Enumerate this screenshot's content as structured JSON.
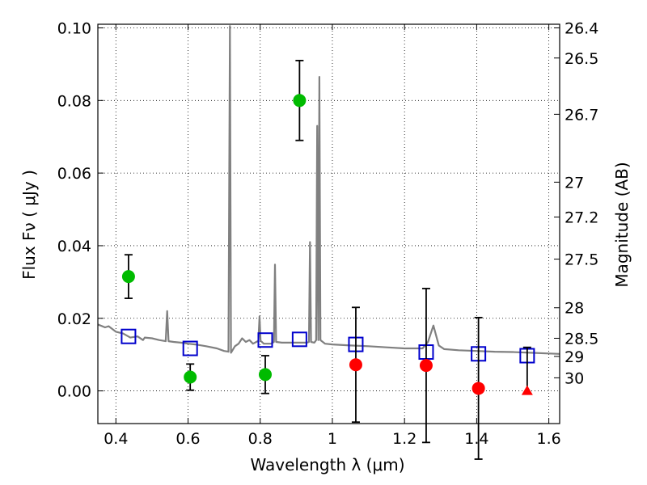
{
  "chart_data": {
    "type": "scatter",
    "xlabel": "Wavelength  λ (μm)",
    "ylabel": "Flux  Fν  ( μJy )",
    "y2label": "Magnitude (AB)",
    "xlim": [
      0.35,
      1.63
    ],
    "ylim": [
      -0.009,
      0.101
    ],
    "grid": true,
    "x_ticks": [
      0.4,
      0.6,
      0.8,
      1.0,
      1.2,
      1.4,
      1.6
    ],
    "x_tick_labels": [
      "0.4",
      "0.6",
      "0.8",
      "1",
      "1.2",
      "1.4",
      "1.6"
    ],
    "y_ticks": [
      0.0,
      0.02,
      0.04,
      0.06,
      0.08,
      0.1
    ],
    "y_tick_labels": [
      "0.00",
      "0.02",
      "0.04",
      "0.06",
      "0.08",
      "0.10"
    ],
    "y2_ticks": [
      {
        "flux": 0.1,
        "label": "26.4"
      },
      {
        "flux": 0.0917,
        "label": "26.5"
      },
      {
        "flux": 0.0762,
        "label": "26.7"
      },
      {
        "flux": 0.0575,
        "label": "27"
      },
      {
        "flux": 0.0479,
        "label": "27.2"
      },
      {
        "flux": 0.0363,
        "label": "27.5"
      },
      {
        "flux": 0.0229,
        "label": "28"
      },
      {
        "flux": 0.0145,
        "label": "28.5"
      },
      {
        "flux": 0.0095,
        "label": "29"
      },
      {
        "flux": 0.0036,
        "label": "30"
      }
    ],
    "colors": {
      "detection": "#00bb00",
      "low_snr": "#ff0000",
      "model": "#0000cc",
      "spectrum": "#808080",
      "errorbar": "#000000"
    },
    "series": [
      {
        "type": "errorbar",
        "marker": "circle",
        "color": "#00bb00",
        "points": [
          {
            "x": 0.435,
            "y": 0.0315,
            "err": 0.006
          },
          {
            "x": 0.606,
            "y": 0.0038,
            "err": 0.0036
          },
          {
            "x": 0.814,
            "y": 0.0045,
            "err": 0.0052
          },
          {
            "x": 0.909,
            "y": 0.08,
            "err": 0.011
          }
        ]
      },
      {
        "type": "errorbar",
        "marker": "circle",
        "color": "#ff0000",
        "points": [
          {
            "x": 1.065,
            "y": 0.0072,
            "err": 0.0158
          },
          {
            "x": 1.26,
            "y": 0.007,
            "err": 0.0212
          },
          {
            "x": 1.405,
            "y": 0.0007,
            "err": 0.0195
          }
        ]
      },
      {
        "type": "upper_limit",
        "marker": "triangle",
        "color": "#ff0000",
        "points": [
          {
            "x": 1.54,
            "y": 0.0,
            "err_up": 0.012
          }
        ]
      },
      {
        "type": "model",
        "marker": "square",
        "color": "#0000cc",
        "points": [
          {
            "x": 0.435,
            "y": 0.015
          },
          {
            "x": 0.606,
            "y": 0.0117
          },
          {
            "x": 0.814,
            "y": 0.014
          },
          {
            "x": 0.909,
            "y": 0.0142
          },
          {
            "x": 1.065,
            "y": 0.0128
          },
          {
            "x": 1.26,
            "y": 0.0107
          },
          {
            "x": 1.405,
            "y": 0.0102
          },
          {
            "x": 1.54,
            "y": 0.0097
          }
        ]
      },
      {
        "type": "spectrum",
        "color": "#808080",
        "points": [
          [
            0.35,
            0.0183
          ],
          [
            0.37,
            0.0175
          ],
          [
            0.38,
            0.0178
          ],
          [
            0.4,
            0.0163
          ],
          [
            0.42,
            0.0158
          ],
          [
            0.44,
            0.0147
          ],
          [
            0.46,
            0.015
          ],
          [
            0.475,
            0.014
          ],
          [
            0.48,
            0.0147
          ],
          [
            0.5,
            0.0145
          ],
          [
            0.52,
            0.014
          ],
          [
            0.538,
            0.0137
          ],
          [
            0.542,
            0.022
          ],
          [
            0.546,
            0.0137
          ],
          [
            0.56,
            0.0135
          ],
          [
            0.58,
            0.0133
          ],
          [
            0.6,
            0.013
          ],
          [
            0.62,
            0.0128
          ],
          [
            0.65,
            0.0123
          ],
          [
            0.68,
            0.0117
          ],
          [
            0.7,
            0.011
          ],
          [
            0.712,
            0.0108
          ],
          [
            0.716,
            0.1005
          ],
          [
            0.719,
            0.0105
          ],
          [
            0.73,
            0.0123
          ],
          [
            0.74,
            0.013
          ],
          [
            0.75,
            0.0145
          ],
          [
            0.76,
            0.0135
          ],
          [
            0.77,
            0.014
          ],
          [
            0.78,
            0.013
          ],
          [
            0.795,
            0.0138
          ],
          [
            0.798,
            0.0205
          ],
          [
            0.801,
            0.0138
          ],
          [
            0.81,
            0.013
          ],
          [
            0.83,
            0.013
          ],
          [
            0.838,
            0.0135
          ],
          [
            0.841,
            0.0348
          ],
          [
            0.844,
            0.0135
          ],
          [
            0.86,
            0.0133
          ],
          [
            0.9,
            0.0133
          ],
          [
            0.93,
            0.0133
          ],
          [
            0.935,
            0.0135
          ],
          [
            0.938,
            0.041
          ],
          [
            0.941,
            0.0135
          ],
          [
            0.95,
            0.0133
          ],
          [
            0.955,
            0.014
          ],
          [
            0.958,
            0.073
          ],
          [
            0.961,
            0.014
          ],
          [
            0.964,
            0.0865
          ],
          [
            0.967,
            0.014
          ],
          [
            0.98,
            0.013
          ],
          [
            1.0,
            0.0128
          ],
          [
            1.05,
            0.0125
          ],
          [
            1.1,
            0.0123
          ],
          [
            1.15,
            0.012
          ],
          [
            1.2,
            0.0117
          ],
          [
            1.25,
            0.0117
          ],
          [
            1.265,
            0.0135
          ],
          [
            1.28,
            0.018
          ],
          [
            1.295,
            0.0125
          ],
          [
            1.31,
            0.0115
          ],
          [
            1.35,
            0.0112
          ],
          [
            1.4,
            0.011
          ],
          [
            1.45,
            0.0108
          ],
          [
            1.5,
            0.0107
          ],
          [
            1.55,
            0.0105
          ],
          [
            1.6,
            0.0103
          ],
          [
            1.63,
            0.0102
          ]
        ]
      }
    ]
  }
}
